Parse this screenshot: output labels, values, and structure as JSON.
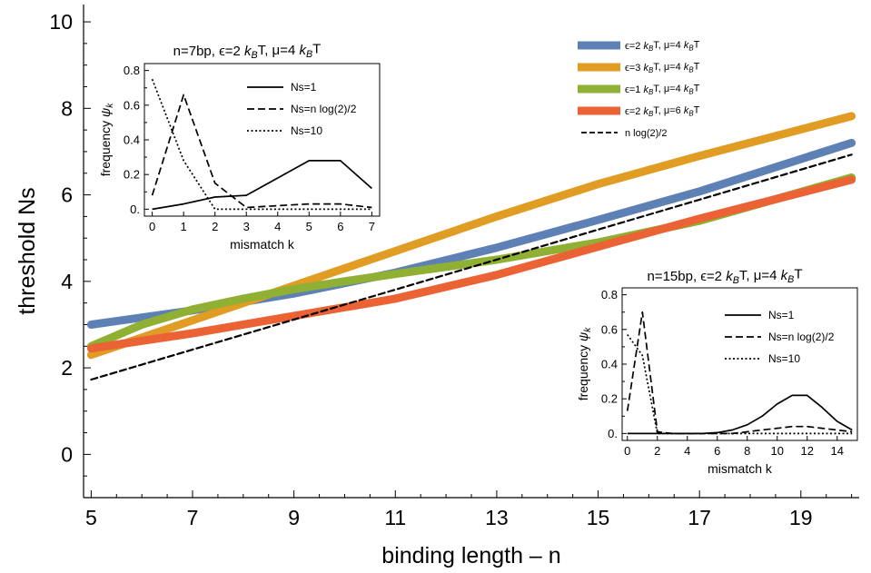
{
  "chart_data": [
    {
      "type": "line",
      "xlabel": "binding length – n",
      "ylabel": "threshold Ns",
      "xlim": [
        4.85,
        20.15
      ],
      "ylim": [
        -1,
        10.4
      ],
      "xticks": [
        5,
        7,
        9,
        11,
        13,
        15,
        17,
        19
      ],
      "yticks": [
        0,
        2,
        4,
        6,
        8,
        10
      ],
      "legend": "top-right",
      "series": [
        {
          "name": "ϵ=2 kBT, μ=4 kBT",
          "color": "#5E81B5",
          "style": "solid-thick",
          "x": [
            5,
            7,
            9,
            11,
            13,
            15,
            17,
            20
          ],
          "y": [
            3.0,
            3.33,
            3.72,
            4.2,
            4.78,
            5.42,
            6.08,
            7.2
          ]
        },
        {
          "name": "ϵ=3 kBT, μ=4 kBT",
          "color": "#E19C24",
          "style": "solid-thick",
          "x": [
            5,
            7,
            9,
            11,
            13,
            15,
            17,
            20
          ],
          "y": [
            2.3,
            3.1,
            3.9,
            4.7,
            5.5,
            6.25,
            6.9,
            7.82
          ]
        },
        {
          "name": "ϵ=1 kBT, μ=4 kBT",
          "color": "#8FB032",
          "style": "solid-thick",
          "x": [
            5,
            6,
            7,
            8,
            9,
            10,
            11,
            13,
            15,
            17,
            20
          ],
          "y": [
            2.5,
            3.0,
            3.35,
            3.6,
            3.82,
            4.0,
            4.17,
            4.5,
            4.9,
            5.4,
            6.4
          ]
        },
        {
          "name": "ϵ=2 kBT, μ=6 kBT",
          "color": "#EB6235",
          "style": "solid-thick",
          "x": [
            5,
            7,
            9,
            11,
            13,
            15,
            17,
            20
          ],
          "y": [
            2.45,
            2.8,
            3.2,
            3.6,
            4.15,
            4.8,
            5.45,
            6.35
          ]
        },
        {
          "name": "n log(2)/2",
          "color": "#000000",
          "style": "dashed",
          "x": [
            5,
            20
          ],
          "y": [
            1.73,
            6.93
          ]
        }
      ]
    },
    {
      "type": "line",
      "title": "n=7bp, ϵ=2 kBT, μ=4 kBT",
      "xlabel": "mismatch k",
      "ylabel": "frequency ψk",
      "xlim": [
        -0.25,
        7.25
      ],
      "ylim": [
        -0.04,
        0.84
      ],
      "xticks": [
        0,
        1,
        2,
        3,
        4,
        5,
        6,
        7
      ],
      "yticks": [
        0.0,
        0.2,
        0.4,
        0.6,
        0.8
      ],
      "ytick_labels": [
        "0.",
        "0.2",
        "0.4",
        "0.6",
        "0.8"
      ],
      "series": [
        {
          "name": "Ns=1",
          "style": "solid",
          "x": [
            0,
            1,
            2,
            3,
            4,
            5,
            6,
            7
          ],
          "y": [
            0.0,
            0.03,
            0.07,
            0.08,
            0.18,
            0.28,
            0.28,
            0.12
          ]
        },
        {
          "name": "Ns=n log(2)/2",
          "style": "dashed",
          "x": [
            0,
            1,
            2,
            3,
            4,
            5,
            6,
            7
          ],
          "y": [
            0.08,
            0.66,
            0.15,
            0.01,
            0.02,
            0.03,
            0.03,
            0.01
          ]
        },
        {
          "name": "Ns=10",
          "style": "dotted",
          "x": [
            0,
            1,
            2,
            3,
            4,
            5,
            6,
            7
          ],
          "y": [
            0.75,
            0.28,
            0.0,
            0.0,
            0.0,
            0.0,
            0.0,
            0.0
          ]
        }
      ]
    },
    {
      "type": "line",
      "title": "n=15bp, ϵ=2 kBT, μ=4 kBT",
      "xlabel": "mismatch k",
      "ylabel": "frequency ψk",
      "xlim": [
        -0.35,
        15.35
      ],
      "ylim": [
        -0.04,
        0.84
      ],
      "xticks": [
        0,
        2,
        4,
        6,
        8,
        10,
        12,
        14
      ],
      "yticks": [
        0.0,
        0.2,
        0.4,
        0.6,
        0.8
      ],
      "ytick_labels": [
        "0.",
        "0.2",
        "0.4",
        "0.6",
        "0.8"
      ],
      "series": [
        {
          "name": "Ns=1",
          "style": "solid",
          "x": [
            0,
            1,
            2,
            3,
            4,
            5,
            6,
            7,
            8,
            9,
            10,
            11,
            12,
            13,
            14,
            15
          ],
          "y": [
            0,
            0,
            0,
            0,
            0,
            0,
            0.005,
            0.02,
            0.05,
            0.1,
            0.17,
            0.22,
            0.22,
            0.15,
            0.07,
            0.02
          ]
        },
        {
          "name": "Ns=n log(2)/2",
          "style": "dashed",
          "x": [
            0,
            1,
            2,
            3,
            4,
            5,
            6,
            7,
            8,
            9,
            10,
            11,
            12,
            13,
            14,
            15
          ],
          "y": [
            0.13,
            0.7,
            0.01,
            0,
            0,
            0,
            0,
            0,
            0.01,
            0.02,
            0.03,
            0.04,
            0.04,
            0.03,
            0.02,
            0.01
          ]
        },
        {
          "name": "Ns=10",
          "style": "dotted",
          "x": [
            0,
            1,
            2,
            3,
            4,
            5,
            6,
            7,
            8,
            9,
            10,
            11,
            12,
            13,
            14,
            15
          ],
          "y": [
            0.57,
            0.45,
            0,
            0,
            0,
            0,
            0,
            0,
            0,
            0,
            0,
            0,
            0,
            0,
            0,
            0
          ]
        }
      ]
    }
  ]
}
